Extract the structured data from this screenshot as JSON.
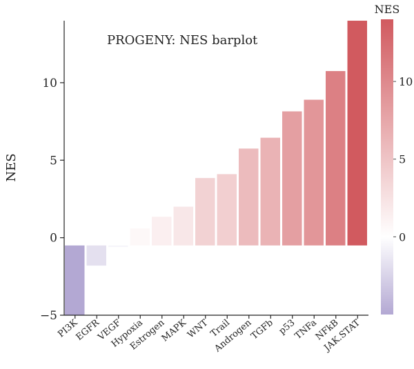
{
  "chart_data": {
    "type": "bar",
    "title": "PROGENY: NES barplot",
    "ylabel": "NES",
    "xlabel": "",
    "ylim": [
      -5,
      14
    ],
    "yticks": [
      -5,
      0,
      5,
      10
    ],
    "baseline": -0.5,
    "categories": [
      "PI3K",
      "EGFR",
      "VEGF",
      "Hypoxia",
      "Estrogen",
      "MAPK",
      "WNT",
      "Trail",
      "Androgen",
      "TGFb",
      "p53",
      "TNFa",
      "NFkB",
      "JAK.STAT"
    ],
    "values": [
      -5.0,
      -1.8,
      -0.6,
      0.6,
      1.35,
      2.0,
      3.85,
      4.1,
      5.75,
      6.45,
      8.15,
      8.9,
      10.75,
      14.0
    ],
    "legend": {
      "title": "NES",
      "ticks": [
        0,
        5,
        10
      ],
      "range": [
        -5,
        14
      ],
      "placement": "right"
    },
    "colors": {
      "low": "#b3a8d3",
      "mid": "#ffffff",
      "high": "#d15a5f"
    }
  }
}
